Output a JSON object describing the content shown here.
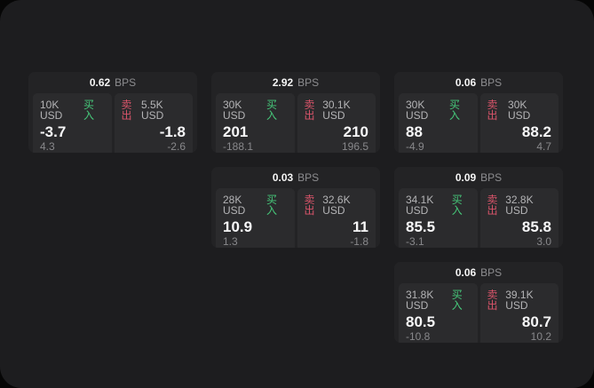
{
  "colors": {
    "buy_green": "#46c87a",
    "sell_red": "#d9546a",
    "screen_bg": "#1d1d1f",
    "card_bg": "#232325",
    "panel_bg": "#2b2b2d"
  },
  "bps_unit": "BPS",
  "buy_label": "买入",
  "sell_label": "卖出",
  "cards": [
    {
      "row": 1,
      "col": 1,
      "bps_value": "0.62",
      "bps_unit": "BPS",
      "buy": {
        "amount": "10K USD",
        "side_label": "买入",
        "price": "-3.7",
        "delta": "4.3"
      },
      "sell": {
        "amount": "5.5K USD",
        "side_label": "卖出",
        "price": "-1.8",
        "delta": "-2.6"
      }
    },
    {
      "row": 1,
      "col": 2,
      "bps_value": "2.92",
      "bps_unit": "BPS",
      "buy": {
        "amount": "30K USD",
        "side_label": "买入",
        "price": "201",
        "delta": "-188.1"
      },
      "sell": {
        "amount": "30.1K USD",
        "side_label": "卖出",
        "price": "210",
        "delta": "196.5"
      }
    },
    {
      "row": 1,
      "col": 3,
      "bps_value": "0.06",
      "bps_unit": "BPS",
      "buy": {
        "amount": "30K USD",
        "side_label": "买入",
        "price": "88",
        "delta": "-4.9"
      },
      "sell": {
        "amount": "30K USD",
        "side_label": "卖出",
        "price": "88.2",
        "delta": "4.7"
      }
    },
    {
      "row": 2,
      "col": 2,
      "bps_value": "0.03",
      "bps_unit": "BPS",
      "buy": {
        "amount": "28K USD",
        "side_label": "买入",
        "price": "10.9",
        "delta": "1.3"
      },
      "sell": {
        "amount": "32.6K USD",
        "side_label": "卖出",
        "price": "11",
        "delta": "-1.8"
      }
    },
    {
      "row": 2,
      "col": 3,
      "bps_value": "0.09",
      "bps_unit": "BPS",
      "buy": {
        "amount": "34.1K USD",
        "side_label": "买入",
        "price": "85.5",
        "delta": "-3.1"
      },
      "sell": {
        "amount": "32.8K USD",
        "side_label": "卖出",
        "price": "85.8",
        "delta": "3.0"
      }
    },
    {
      "row": 3,
      "col": 3,
      "bps_value": "0.06",
      "bps_unit": "BPS",
      "buy": {
        "amount": "31.8K USD",
        "side_label": "买入",
        "price": "80.5",
        "delta": "-10.8"
      },
      "sell": {
        "amount": "39.1K USD",
        "side_label": "卖出",
        "price": "80.7",
        "delta": "10.2"
      }
    }
  ]
}
